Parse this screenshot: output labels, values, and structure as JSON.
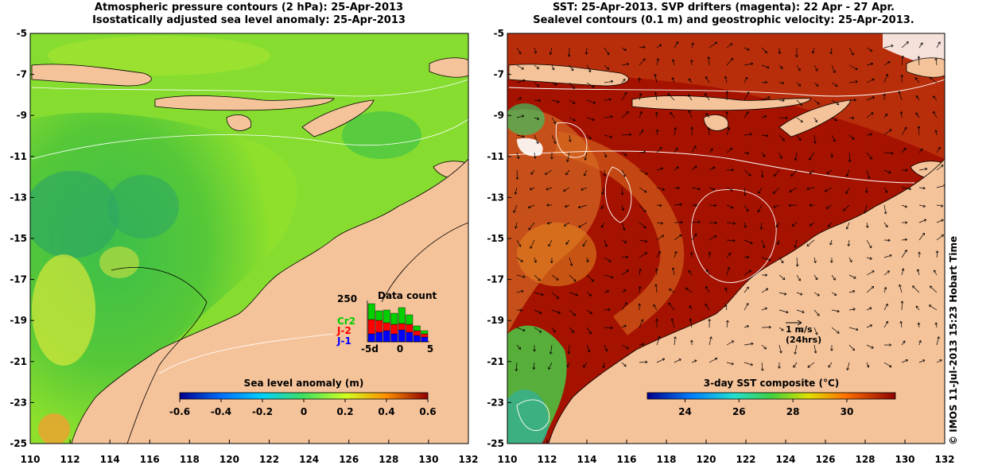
{
  "left_panel": {
    "title_line1": "Atmospheric pressure contours (2 hPa): 25-Apr-2013",
    "title_line2": "Isostatically adjusted sea level anomaly: 25-Apr-2013",
    "colorbar": {
      "title": "Sea level anomaly (m)",
      "ticks": [
        "-0.6",
        "-0.4",
        "-0.2",
        "0",
        "0.2",
        "0.4",
        "0.6"
      ],
      "range": [
        -0.6,
        0.6
      ]
    },
    "data_count": {
      "title": "Data count",
      "ymax_label": "250",
      "legend": [
        {
          "label": "Cr2",
          "color": "#00d000"
        },
        {
          "label": "J-2",
          "color": "#ff0000"
        },
        {
          "label": "J-1",
          "color": "#0000ff"
        }
      ],
      "x_ticks": [
        "-5d",
        "0",
        "5"
      ]
    }
  },
  "right_panel": {
    "title_line1": "SST: 25-Apr-2013. SVP drifters (magenta): 22 Apr - 27 Apr.",
    "title_line2": "Sealevel contours (0.1 m) and geostrophic velocity: 25-Apr-2013.",
    "velocity_scale": {
      "label": "1 m/s",
      "sublabel": "(24hrs)"
    },
    "colorbar": {
      "title": "3-day SST composite (°C)",
      "ticks": [
        "24",
        "26",
        "28",
        "30"
      ],
      "range": [
        22.6,
        31.8
      ]
    }
  },
  "axes": {
    "x_ticks": [
      "110",
      "112",
      "114",
      "116",
      "118",
      "120",
      "122",
      "124",
      "126",
      "128",
      "130",
      "132"
    ],
    "y_ticks": [
      "-5",
      "-7",
      "-9",
      "-11",
      "-13",
      "-15",
      "-17",
      "-19",
      "-21",
      "-23",
      "-25"
    ],
    "x_range": [
      110,
      132
    ],
    "y_range": [
      -25,
      -5
    ]
  },
  "credit": "© IMOS 11-Jul-2013 15:23 Hobart Time",
  "colors": {
    "land": "#f5c39a",
    "sla_background": "#7fdc3a",
    "sst_background": "#a01000"
  }
}
